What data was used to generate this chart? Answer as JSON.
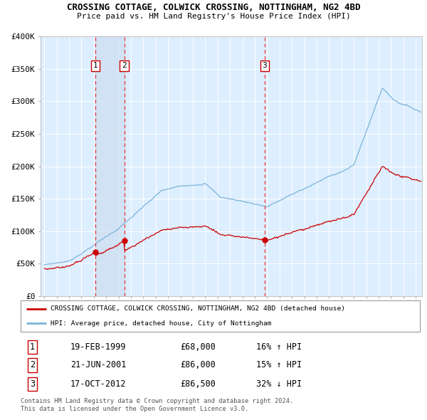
{
  "title": "CROSSING COTTAGE, COLWICK CROSSING, NOTTINGHAM, NG2 4BD",
  "subtitle": "Price paid vs. HM Land Registry's House Price Index (HPI)",
  "ylim": [
    0,
    400000
  ],
  "yticks": [
    0,
    50000,
    100000,
    150000,
    200000,
    250000,
    300000,
    350000,
    400000
  ],
  "ytick_labels": [
    "£0",
    "£50K",
    "£100K",
    "£150K",
    "£200K",
    "£250K",
    "£300K",
    "£350K",
    "£400K"
  ],
  "sale_prices": [
    68000,
    86000,
    86500
  ],
  "hpi_line_color": "#7ab4d8",
  "price_line_color": "#cc0000",
  "sale_dot_color": "#cc0000",
  "dashed_color": "#ee3333",
  "span_color": "#ccddf0",
  "background_color": "#ddeeff",
  "legend_entries": [
    "CROSSING COTTAGE, COLWICK CROSSING, NOTTINGHAM, NG2 4BD (detached house)",
    "HPI: Average price, detached house, City of Nottingham"
  ],
  "table_entries": [
    {
      "num": "1",
      "date": "19-FEB-1999",
      "price": "£68,000",
      "hpi": "16% ↑ HPI"
    },
    {
      "num": "2",
      "date": "21-JUN-2001",
      "price": "£86,000",
      "hpi": "15% ↑ HPI"
    },
    {
      "num": "3",
      "date": "17-OCT-2012",
      "price": "£86,500",
      "hpi": "32% ↓ HPI"
    }
  ],
  "footnote": "Contains HM Land Registry data © Crown copyright and database right 2024.\nThis data is licensed under the Open Government Licence v3.0.",
  "xlim_start": 1994.7,
  "xlim_end": 2025.5,
  "sale1_t": 1999.12,
  "sale2_t": 2001.46,
  "sale3_t": 2012.79
}
